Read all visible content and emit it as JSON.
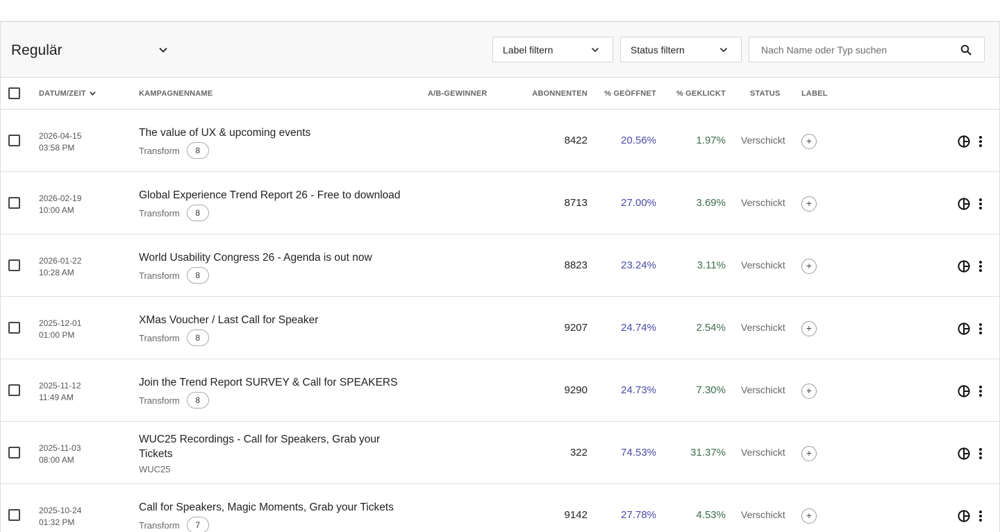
{
  "view": {
    "title": "Regulär"
  },
  "filters": {
    "label": "Label filtern",
    "status": "Status filtern"
  },
  "search": {
    "placeholder": "Nach Name oder Typ suchen",
    "value": ""
  },
  "icons": {
    "search": "search-icon",
    "chevron": "chevron-down-icon",
    "report": "pie-chart-icon",
    "menu": "more-vertical-icon",
    "add": "plus-icon"
  },
  "colors": {
    "opened": "#4a4aa8",
    "clicked": "#3d6d4d"
  },
  "columns": {
    "date": "DATUM/ZEIT",
    "name": "KAMPAGNENNAME",
    "ab_winner": "A/B-GEWINNER",
    "subscribers": "ABONNENTEN",
    "opened": "% GEÖFFNET",
    "clicked": "% GEKLICKT",
    "status": "STATUS",
    "label": "LABEL"
  },
  "campaigns": [
    {
      "date": "2026-04-15",
      "time": "03:58 PM",
      "name": "The value of UX & upcoming events",
      "tag": "Transform",
      "tag_count": "8",
      "subscribers": "8422",
      "opened": "20.56%",
      "clicked": "1.97%",
      "status": "Verschickt",
      "add_label": "+"
    },
    {
      "date": "2026-02-19",
      "time": "10:00 AM",
      "name": "Global Experience Trend Report 26 - Free to download",
      "tag": "Transform",
      "tag_count": "8",
      "subscribers": "8713",
      "opened": "27.00%",
      "clicked": "3.69%",
      "status": "Verschickt",
      "add_label": "+"
    },
    {
      "date": "2026-01-22",
      "time": "10:28 AM",
      "name": "World Usability Congress 26 - Agenda is out now",
      "tag": "Transform",
      "tag_count": "8",
      "subscribers": "8823",
      "opened": "23.24%",
      "clicked": "3.11%",
      "status": "Verschickt",
      "add_label": "+"
    },
    {
      "date": "2025-12-01",
      "time": "01:00 PM",
      "name": "XMas Voucher / Last Call for Speaker",
      "tag": "Transform",
      "tag_count": "8",
      "subscribers": "9207",
      "opened": "24.74%",
      "clicked": "2.54%",
      "status": "Verschickt",
      "add_label": "+"
    },
    {
      "date": "2025-11-12",
      "time": "11:49 AM",
      "name": "Join the Trend Report SURVEY & Call for SPEAKERS",
      "tag": "Transform",
      "tag_count": "8",
      "subscribers": "9290",
      "opened": "24.73%",
      "clicked": "7.30%",
      "status": "Verschickt",
      "add_label": "+"
    },
    {
      "date": "2025-11-03",
      "time": "08:00 AM",
      "name": "WUC25 Recordings - Call for Speakers, Grab your Tickets",
      "tag": "WUC25",
      "tag_count": "",
      "subscribers": "322",
      "opened": "74.53%",
      "clicked": "31.37%",
      "status": "Verschickt",
      "add_label": "+"
    },
    {
      "date": "2025-10-24",
      "time": "01:32 PM",
      "name": "Call for Speakers, Magic Moments, Grab your Tickets",
      "tag": "Transform",
      "tag_count": "7",
      "subscribers": "9142",
      "opened": "27.78%",
      "clicked": "4.53%",
      "status": "Verschickt",
      "add_label": "+"
    }
  ]
}
